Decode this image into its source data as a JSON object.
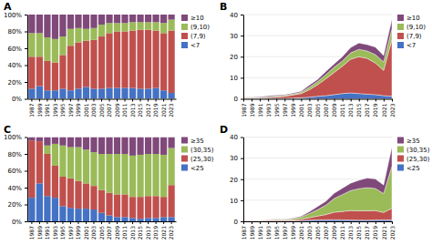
{
  "chart_data": [
    {
      "type": "bar",
      "title": "A",
      "stacked": true,
      "grid": false,
      "legend": "right",
      "categories": [
        "1987",
        "1989",
        "1991",
        "1993",
        "1995",
        "1997",
        "1999",
        "2001",
        "2003",
        "2005",
        "2007",
        "2009",
        "2011",
        "2013",
        "2015",
        "2017",
        "2019",
        "2021",
        "2023"
      ],
      "series": [
        {
          "name": "<7",
          "color": "#4472c4",
          "values": [
            0.12,
            0.15,
            0.1,
            0.1,
            0.12,
            0.1,
            0.12,
            0.14,
            0.12,
            0.12,
            0.13,
            0.13,
            0.13,
            0.13,
            0.12,
            0.12,
            0.13,
            0.1,
            0.07
          ]
        },
        {
          "name": "(7,9)",
          "color": "#c0504d",
          "values": [
            0.38,
            0.35,
            0.35,
            0.33,
            0.4,
            0.53,
            0.55,
            0.55,
            0.58,
            0.62,
            0.65,
            0.67,
            0.67,
            0.68,
            0.7,
            0.7,
            0.68,
            0.68,
            0.74
          ]
        },
        {
          "name": "(9,10)",
          "color": "#9bbb59",
          "values": [
            0.28,
            0.28,
            0.28,
            0.28,
            0.22,
            0.2,
            0.17,
            0.14,
            0.14,
            0.14,
            0.12,
            0.1,
            0.1,
            0.1,
            0.09,
            0.09,
            0.1,
            0.12,
            0.13
          ]
        },
        {
          "name": "≥10",
          "color": "#7f497a",
          "values": [
            0.22,
            0.22,
            0.27,
            0.29,
            0.26,
            0.17,
            0.16,
            0.17,
            0.16,
            0.12,
            0.1,
            0.1,
            0.1,
            0.09,
            0.09,
            0.09,
            0.09,
            0.1,
            0.06
          ]
        }
      ],
      "ylim": [
        0,
        1.0
      ],
      "yticks": [
        {
          "value": 0,
          "label": "0%"
        },
        {
          "value": 0.2,
          "label": "20%"
        },
        {
          "value": 0.4,
          "label": "40%"
        },
        {
          "value": 0.6,
          "label": "60%"
        },
        {
          "value": 0.8,
          "label": "80%"
        },
        {
          "value": 1.0,
          "label": "100%"
        }
      ]
    },
    {
      "type": "area",
      "title": "B",
      "stacked": true,
      "grid": true,
      "legend": "right",
      "categories": [
        "1987",
        "1989",
        "1991",
        "1993",
        "1995",
        "1997",
        "1999",
        "2001",
        "2003",
        "2005",
        "2007",
        "2009",
        "2011",
        "2013",
        "2015",
        "2017",
        "2019",
        "2021",
        "2023"
      ],
      "series": [
        {
          "name": "<7",
          "color": "#4472c4",
          "values": [
            0.1,
            0.1,
            0.1,
            0.1,
            0.2,
            0.2,
            0.3,
            0.5,
            0.8,
            1.2,
            1.5,
            2.0,
            2.5,
            2.8,
            2.5,
            2.2,
            2.0,
            1.5,
            1.2
          ]
        },
        {
          "name": "(7,9)",
          "color": "#c0504d",
          "values": [
            0.3,
            0.3,
            0.3,
            0.5,
            0.7,
            1.0,
            1.5,
            2.0,
            3.5,
            5.5,
            8.0,
            10.5,
            13.0,
            16.0,
            17.5,
            17.0,
            15.0,
            12.0,
            27.0
          ]
        },
        {
          "name": "(9,10)",
          "color": "#9bbb59",
          "values": [
            0.2,
            0.2,
            0.3,
            0.4,
            0.4,
            0.4,
            0.5,
            0.6,
            1.2,
            1.5,
            2.0,
            2.5,
            2.5,
            3.0,
            3.5,
            3.5,
            4.0,
            4.0,
            5.0
          ]
        },
        {
          "name": "≥10",
          "color": "#7f497a",
          "values": [
            0.2,
            0.2,
            0.3,
            0.4,
            0.4,
            0.3,
            0.4,
            0.5,
            1.0,
            1.0,
            1.5,
            1.5,
            2.0,
            2.5,
            3.0,
            3.0,
            3.5,
            3.0,
            4.5
          ]
        }
      ],
      "ylim": [
        0,
        40
      ],
      "yticks": [
        0,
        10,
        20,
        30,
        40
      ]
    },
    {
      "type": "bar",
      "title": "C",
      "stacked": true,
      "grid": false,
      "legend": "right",
      "categories": [
        "1987",
        "1989",
        "1991",
        "1993",
        "1995",
        "1997",
        "1999",
        "2001",
        "2003",
        "2005",
        "2007",
        "2009",
        "2011",
        "2013",
        "2015",
        "2017",
        "2019",
        "2021",
        "2023"
      ],
      "series": [
        {
          "name": "<25",
          "color": "#4472c4",
          "values": [
            0.28,
            0.45,
            0.3,
            0.28,
            0.18,
            0.16,
            0.15,
            0.15,
            0.14,
            0.1,
            0.07,
            0.05,
            0.05,
            0.04,
            0.03,
            0.04,
            0.04,
            0.05,
            0.05
          ]
        },
        {
          "name": "(25,30)",
          "color": "#c0504d",
          "values": [
            0.68,
            0.5,
            0.5,
            0.38,
            0.35,
            0.35,
            0.33,
            0.3,
            0.28,
            0.27,
            0.27,
            0.27,
            0.27,
            0.25,
            0.26,
            0.26,
            0.26,
            0.24,
            0.38
          ]
        },
        {
          "name": "(30,35)",
          "color": "#9bbb59",
          "values": [
            0.0,
            0.0,
            0.1,
            0.26,
            0.37,
            0.37,
            0.4,
            0.4,
            0.4,
            0.43,
            0.46,
            0.48,
            0.48,
            0.49,
            0.5,
            0.5,
            0.5,
            0.5,
            0.44
          ]
        },
        {
          "name": "≥35",
          "color": "#7f497a",
          "values": [
            0.04,
            0.05,
            0.1,
            0.08,
            0.1,
            0.12,
            0.12,
            0.15,
            0.18,
            0.2,
            0.2,
            0.2,
            0.2,
            0.22,
            0.21,
            0.2,
            0.2,
            0.21,
            0.13
          ]
        }
      ],
      "ylim": [
        0,
        1.0
      ],
      "yticks": [
        {
          "value": 0,
          "label": "0%"
        },
        {
          "value": 0.2,
          "label": "20%"
        },
        {
          "value": 0.4,
          "label": "40%"
        },
        {
          "value": 0.6,
          "label": "60%"
        },
        {
          "value": 0.8,
          "label": "80%"
        },
        {
          "value": 1.0,
          "label": "100%"
        }
      ]
    },
    {
      "type": "area",
      "title": "D",
      "stacked": true,
      "grid": true,
      "legend": "right",
      "categories": [
        "1987",
        "1989",
        "1991",
        "1993",
        "1995",
        "1997",
        "1999",
        "2001",
        "2003",
        "2005",
        "2007",
        "2009",
        "2011",
        "2013",
        "2015",
        "2017",
        "2019",
        "2021",
        "2023"
      ],
      "series": [
        {
          "name": "<25",
          "color": "#4472c4",
          "values": [
            0.1,
            0.2,
            0.1,
            0.2,
            0.2,
            0.2,
            0.2,
            0.3,
            0.5,
            0.7,
            0.7,
            0.8,
            0.7,
            0.6,
            0.5,
            0.5,
            0.6,
            0.7,
            0.7
          ]
        },
        {
          "name": "(25,30)",
          "color": "#c0504d",
          "values": [
            0.3,
            0.3,
            0.2,
            0.3,
            0.4,
            0.4,
            0.5,
            0.7,
            1.2,
            1.8,
            2.5,
            3.5,
            4.0,
            4.5,
            4.5,
            4.5,
            4.5,
            3.5,
            5.5
          ]
        },
        {
          "name": "(30,35)",
          "color": "#9bbb59",
          "values": [
            0.0,
            0.0,
            0.1,
            0.2,
            0.4,
            0.4,
            0.6,
            1.0,
            2.0,
            3.0,
            4.5,
            6.5,
            8.0,
            9.5,
            10.5,
            11.0,
            10.5,
            9.0,
            20.0
          ]
        },
        {
          "name": "≥35",
          "color": "#7f497a",
          "values": [
            0.0,
            0.0,
            0.0,
            0.1,
            0.1,
            0.1,
            0.2,
            0.4,
            0.8,
            1.5,
            1.8,
            2.5,
            3.0,
            3.5,
            4.0,
            4.5,
            4.5,
            4.0,
            9.0
          ]
        }
      ],
      "ylim": [
        0,
        40
      ],
      "yticks": [
        0,
        10,
        20,
        30,
        40
      ]
    }
  ]
}
